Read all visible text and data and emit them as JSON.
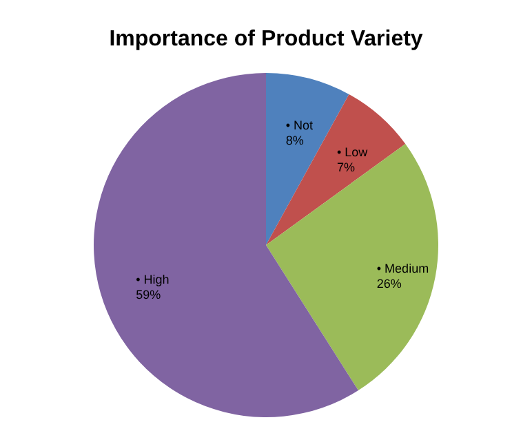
{
  "chart_data": {
    "type": "pie",
    "title": "Importance of Product Variety",
    "categories": [
      "• Not",
      "• Low",
      "• Medium",
      "• High"
    ],
    "values": [
      8,
      7,
      26,
      59
    ],
    "value_labels": [
      "8%",
      "7%",
      "26%",
      "59%"
    ],
    "colors": [
      "#4f81bd",
      "#c0504d",
      "#9bbb59",
      "#8064a2"
    ],
    "legend": false
  }
}
